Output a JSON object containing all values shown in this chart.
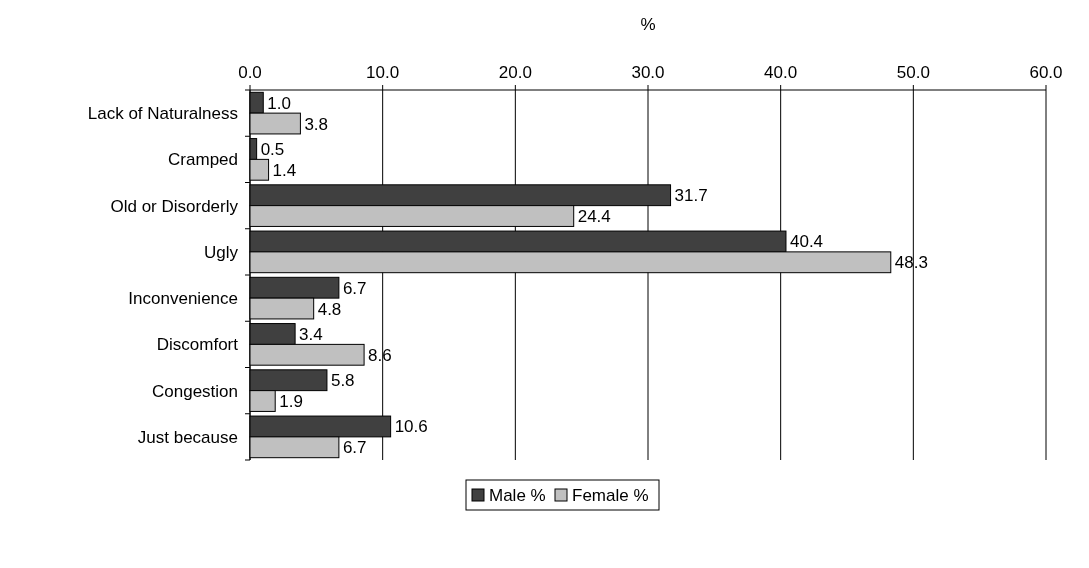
{
  "chart_data": {
    "type": "bar",
    "orientation": "horizontal",
    "xlabel": "%",
    "categories": [
      "Lack of Naturalness",
      "Cramped",
      "Old or Disorderly",
      "Ugly",
      "Inconvenience",
      "Discomfort",
      "Congestion",
      "Just because"
    ],
    "series": [
      {
        "name": "Male %",
        "color": "#404040",
        "values": [
          1.0,
          0.5,
          31.7,
          40.4,
          6.7,
          3.4,
          5.8,
          10.6
        ]
      },
      {
        "name": "Female %",
        "color": "#c0c0c0",
        "values": [
          3.8,
          1.4,
          24.4,
          48.3,
          4.8,
          8.6,
          1.9,
          6.7
        ]
      }
    ],
    "value_labels": [
      [
        "1.0",
        "0.5",
        "31.7",
        "40.4",
        "6.7",
        "3.4",
        "5.8",
        "10.6"
      ],
      [
        "3.8",
        "1.4",
        "24.4",
        "48.3",
        "4.8",
        "8.6",
        "1.9",
        "6.7"
      ]
    ],
    "xlim": [
      0,
      60
    ],
    "xticks": [
      {
        "value": 0,
        "label": "0.0"
      },
      {
        "value": 10,
        "label": "10.0"
      },
      {
        "value": 20,
        "label": "20.0"
      },
      {
        "value": 30,
        "label": "30.0"
      },
      {
        "value": 40,
        "label": "40.0"
      },
      {
        "value": 50,
        "label": "50.0"
      },
      {
        "value": 60,
        "label": "60.0"
      }
    ],
    "grid": "x",
    "legend": "bottom"
  }
}
